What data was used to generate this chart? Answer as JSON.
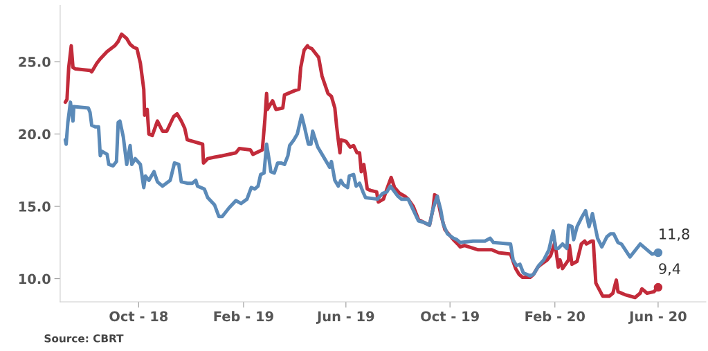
{
  "chart_data": {
    "type": "line",
    "xlim": [
      "2018-07-01",
      "2020-07-27"
    ],
    "xticks": [
      {
        "value": "2018-10-01",
        "label": "Oct - 18"
      },
      {
        "value": "2019-02-01",
        "label": "Feb - 19"
      },
      {
        "value": "2019-06-01",
        "label": "Jun - 19"
      },
      {
        "value": "2019-10-01",
        "label": "Oct - 19"
      },
      {
        "value": "2020-02-01",
        "label": "Feb - 20"
      },
      {
        "value": "2020-06-01",
        "label": "Jun - 20"
      }
    ],
    "ylim": [
      8.4,
      28.9
    ],
    "yticks": [
      {
        "value": 10,
        "label": "10.0"
      },
      {
        "value": 15,
        "label": "15.0"
      },
      {
        "value": 20,
        "label": "20.0"
      },
      {
        "value": 25,
        "label": "25.0"
      }
    ],
    "marker": "none",
    "line_style": "solid",
    "series": [
      {
        "color": "#c22b3a",
        "x": [
          "2018-07-07",
          "2018-07-09",
          "2018-07-11",
          "2018-07-14",
          "2018-07-16",
          "2018-07-19",
          "2018-08-05",
          "2018-08-07",
          "2018-08-13",
          "2018-08-17",
          "2018-08-25",
          "2018-09-03",
          "2018-09-07",
          "2018-09-11",
          "2018-09-17",
          "2018-09-21",
          "2018-09-25",
          "2018-09-29",
          "2018-10-03",
          "2018-10-07",
          "2018-10-08",
          "2018-10-11",
          "2018-10-13",
          "2018-10-17",
          "2018-10-23",
          "2018-10-29",
          "2018-11-03",
          "2018-11-11",
          "2018-11-15",
          "2018-11-20",
          "2018-11-24",
          "2018-11-27",
          "2018-12-15",
          "2018-12-16",
          "2018-12-21",
          "2018-12-29",
          "2019-01-07",
          "2019-01-23",
          "2019-01-27",
          "2019-02-09",
          "2019-02-12",
          "2019-02-23",
          "2019-02-26",
          "2019-02-28",
          "2019-03-01",
          "2019-03-07",
          "2019-03-11",
          "2019-03-19",
          "2019-03-21",
          "2019-04-02",
          "2019-04-07",
          "2019-04-09",
          "2019-04-13",
          "2019-04-17",
          "2019-04-18",
          "2019-04-22",
          "2019-04-30",
          "2019-05-04",
          "2019-05-11",
          "2019-05-15",
          "2019-05-19",
          "2019-05-21",
          "2019-05-23",
          "2019-05-25",
          "2019-05-26",
          "2019-06-01",
          "2019-06-06",
          "2019-06-10",
          "2019-06-14",
          "2019-06-17",
          "2019-06-19",
          "2019-06-22",
          "2019-06-26",
          "2019-06-30",
          "2019-07-07",
          "2019-07-09",
          "2019-07-15",
          "2019-07-19",
          "2019-07-24",
          "2019-07-28",
          "2019-08-03",
          "2019-08-09",
          "2019-08-13",
          "2019-08-19",
          "2019-08-25",
          "2019-08-31",
          "2019-09-07",
          "2019-09-11",
          "2019-09-13",
          "2019-09-16",
          "2019-09-20",
          "2019-09-25",
          "2019-10-05",
          "2019-10-10",
          "2019-10-13",
          "2019-10-18",
          "2019-11-03",
          "2019-11-19",
          "2019-11-27",
          "2019-12-11",
          "2019-12-17",
          "2019-12-21",
          "2019-12-25",
          "2020-01-03",
          "2020-01-07",
          "2020-01-12",
          "2020-01-16",
          "2020-01-23",
          "2020-01-27",
          "2020-02-01",
          "2020-02-05",
          "2020-02-07",
          "2020-02-10",
          "2020-02-17",
          "2020-02-18",
          "2020-02-21",
          "2020-02-27",
          "2020-03-03",
          "2020-03-07",
          "2020-03-09",
          "2020-03-15",
          "2020-03-17",
          "2020-03-20",
          "2020-03-28",
          "2020-04-05",
          "2020-04-09",
          "2020-04-13",
          "2020-04-15",
          "2020-04-23",
          "2020-05-05",
          "2020-05-11",
          "2020-05-13",
          "2020-05-19",
          "2020-05-27",
          "2020-06-01"
        ],
        "values": [
          22.2,
          22.4,
          24.6,
          26.1,
          24.6,
          24.5,
          24.4,
          24.3,
          24.9,
          25.2,
          25.7,
          26.1,
          26.4,
          26.9,
          26.6,
          26.2,
          26.0,
          25.9,
          24.9,
          23.1,
          21.3,
          21.7,
          20.0,
          19.9,
          20.9,
          20.2,
          20.2,
          21.2,
          21.4,
          20.9,
          20.4,
          19.6,
          19.3,
          18.0,
          18.3,
          18.4,
          18.5,
          18.7,
          19.0,
          18.9,
          18.6,
          18.9,
          21.0,
          22.8,
          21.7,
          22.3,
          21.7,
          21.8,
          22.7,
          23.0,
          23.1,
          24.6,
          25.8,
          26.1,
          26.0,
          25.9,
          25.3,
          24.0,
          22.8,
          22.6,
          21.8,
          20.6,
          19.6,
          18.7,
          19.6,
          19.5,
          19.1,
          19.2,
          18.7,
          18.7,
          17.4,
          17.9,
          16.2,
          16.1,
          16.0,
          15.3,
          15.5,
          16.2,
          17.0,
          16.3,
          15.9,
          15.7,
          15.5,
          15.0,
          14.1,
          13.9,
          13.7,
          14.8,
          15.8,
          15.7,
          14.5,
          13.4,
          12.7,
          12.4,
          12.2,
          12.3,
          12.0,
          12.0,
          11.8,
          11.7,
          10.7,
          10.3,
          10.1,
          10.1,
          10.3,
          10.8,
          11.0,
          11.3,
          11.6,
          12.5,
          10.8,
          11.3,
          10.7,
          11.3,
          12.3,
          11.0,
          11.2,
          12.4,
          12.6,
          12.4,
          12.6,
          12.6,
          9.7,
          8.8,
          8.8,
          9.0,
          9.9,
          9.1,
          8.9,
          8.7,
          9.0,
          9.3,
          9.0,
          9.1,
          9.4
        ]
      },
      {
        "color": "#5b8ab8",
        "x": [
          "2018-07-07",
          "2018-07-08",
          "2018-07-10",
          "2018-07-13",
          "2018-07-16",
          "2018-07-17",
          "2018-08-03",
          "2018-08-05",
          "2018-08-07",
          "2018-08-11",
          "2018-08-15",
          "2018-08-17",
          "2018-08-19",
          "2018-08-25",
          "2018-08-27",
          "2018-09-01",
          "2018-09-05",
          "2018-09-07",
          "2018-09-09",
          "2018-09-13",
          "2018-09-17",
          "2018-09-21",
          "2018-09-23",
          "2018-09-27",
          "2018-10-03",
          "2018-10-07",
          "2018-10-09",
          "2018-10-13",
          "2018-10-19",
          "2018-10-23",
          "2018-10-29",
          "2018-11-07",
          "2018-11-12",
          "2018-11-17",
          "2018-11-20",
          "2018-11-27",
          "2018-12-03",
          "2018-12-07",
          "2018-12-09",
          "2018-12-17",
          "2018-12-21",
          "2018-12-29",
          "2019-01-03",
          "2019-01-07",
          "2019-01-15",
          "2019-01-23",
          "2019-01-29",
          "2019-02-05",
          "2019-02-10",
          "2019-02-14",
          "2019-02-18",
          "2019-02-21",
          "2019-02-25",
          "2019-02-28",
          "2019-03-03",
          "2019-03-05",
          "2019-03-09",
          "2019-03-13",
          "2019-03-17",
          "2019-03-21",
          "2019-03-25",
          "2019-03-27",
          "2019-04-01",
          "2019-04-05",
          "2019-04-10",
          "2019-04-13",
          "2019-04-18",
          "2019-04-21",
          "2019-04-23",
          "2019-04-29",
          "2019-05-07",
          "2019-05-13",
          "2019-05-15",
          "2019-05-19",
          "2019-05-23",
          "2019-05-26",
          "2019-05-29",
          "2019-06-03",
          "2019-06-05",
          "2019-06-10",
          "2019-06-13",
          "2019-06-17",
          "2019-06-21",
          "2019-06-24",
          "2019-07-08",
          "2019-07-14",
          "2019-07-19",
          "2019-07-23",
          "2019-08-01",
          "2019-08-05",
          "2019-08-13",
          "2019-08-17",
          "2019-08-25",
          "2019-08-31",
          "2019-09-07",
          "2019-09-11",
          "2019-09-16",
          "2019-09-20",
          "2019-09-23",
          "2019-09-28",
          "2019-10-05",
          "2019-10-09",
          "2019-10-13",
          "2019-10-28",
          "2019-11-11",
          "2019-11-17",
          "2019-11-21",
          "2019-12-11",
          "2019-12-14",
          "2019-12-18",
          "2019-12-22",
          "2019-12-26",
          "2020-01-03",
          "2020-01-07",
          "2020-01-13",
          "2020-01-19",
          "2020-01-25",
          "2020-01-30",
          "2020-02-02",
          "2020-02-05",
          "2020-02-10",
          "2020-02-15",
          "2020-02-17",
          "2020-02-21",
          "2020-02-23",
          "2020-02-27",
          "2020-03-04",
          "2020-03-08",
          "2020-03-12",
          "2020-03-16",
          "2020-03-22",
          "2020-03-27",
          "2020-04-02",
          "2020-04-06",
          "2020-04-10",
          "2020-04-15",
          "2020-04-19",
          "2020-04-29",
          "2020-05-11",
          "2020-05-25",
          "2020-06-01"
        ],
        "values": [
          19.6,
          19.3,
          20.8,
          22.2,
          20.9,
          21.9,
          21.8,
          21.5,
          20.6,
          20.5,
          20.5,
          18.5,
          18.8,
          18.6,
          17.9,
          17.8,
          18.1,
          20.8,
          20.9,
          19.8,
          17.9,
          19.2,
          17.9,
          18.3,
          17.9,
          16.3,
          17.1,
          16.8,
          17.4,
          16.7,
          16.4,
          16.8,
          18.0,
          17.9,
          16.7,
          16.6,
          16.6,
          16.8,
          16.4,
          16.2,
          15.6,
          15.1,
          14.3,
          14.3,
          14.9,
          15.4,
          15.2,
          15.5,
          16.3,
          16.2,
          16.4,
          17.2,
          17.3,
          19.3,
          18.2,
          17.4,
          17.3,
          18.0,
          18.0,
          17.9,
          18.5,
          19.2,
          19.6,
          20.0,
          21.3,
          20.6,
          19.3,
          19.3,
          20.2,
          19.1,
          18.3,
          17.7,
          18.1,
          16.8,
          16.4,
          16.8,
          16.5,
          16.3,
          17.1,
          17.2,
          16.4,
          16.6,
          16.0,
          15.6,
          15.5,
          15.9,
          16.0,
          16.4,
          15.7,
          15.5,
          15.5,
          15.0,
          14.0,
          13.9,
          13.7,
          14.8,
          15.7,
          14.8,
          13.8,
          13.1,
          12.8,
          12.7,
          12.5,
          12.6,
          12.6,
          12.8,
          12.5,
          12.4,
          11.3,
          10.9,
          11.0,
          10.4,
          10.2,
          10.3,
          10.9,
          11.3,
          12.0,
          13.3,
          12.1,
          12.1,
          12.4,
          12.1,
          13.7,
          13.6,
          12.7,
          13.6,
          14.3,
          14.7,
          13.6,
          14.5,
          12.8,
          12.2,
          12.9,
          13.1,
          13.1,
          12.5,
          12.4,
          11.5,
          12.4,
          11.7,
          11.8
        ]
      }
    ],
    "annotations": [
      {
        "text": "11,8",
        "x": "2020-06-01",
        "y": 11.8
      },
      {
        "text": "9,4",
        "x": "2020-06-01",
        "y": 9.4
      },
      "Source: CBRT"
    ]
  }
}
